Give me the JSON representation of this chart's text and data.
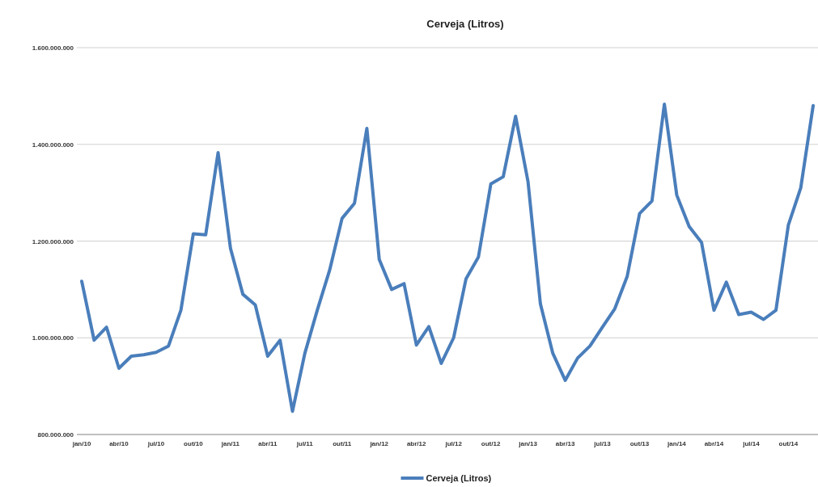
{
  "chart_data": {
    "type": "line",
    "title": "Cerveja (Litros)",
    "categories": [
      "jan/10",
      null,
      null,
      "abr/10",
      null,
      null,
      "jul/10",
      null,
      null,
      "out/10",
      null,
      null,
      "jan/11",
      null,
      null,
      "abr/11",
      null,
      null,
      "jul/11",
      null,
      null,
      "out/11",
      null,
      null,
      "jan/12",
      null,
      null,
      "abr/12",
      null,
      null,
      "jul/12",
      null,
      null,
      "out/12",
      null,
      null,
      "jan/13",
      null,
      null,
      "abr/13",
      null,
      null,
      "jul/13",
      null,
      null,
      "out/13",
      null,
      null,
      "jan/14",
      null,
      null,
      "abr/14",
      null,
      null,
      "jul/14",
      null,
      null,
      "out/14",
      null,
      null
    ],
    "series": [
      {
        "name": "Cerveja (Litros)",
        "color": "#4a7ebb",
        "values": [
          1117000000,
          995000000,
          1022000000,
          937000000,
          962000000,
          965000000,
          970000000,
          983000000,
          1057000000,
          1215000000,
          1213000000,
          1383000000,
          1185000000,
          1090000000,
          1068000000,
          962000000,
          995000000,
          848000000,
          968000000,
          1057000000,
          1140000000,
          1247000000,
          1278000000,
          1433000000,
          1162000000,
          1100000000,
          1112000000,
          985000000,
          1023000000,
          947000000,
          1000000000,
          1122000000,
          1167000000,
          1318000000,
          1333000000,
          1458000000,
          1323000000,
          1070000000,
          968000000,
          912000000,
          958000000,
          983000000,
          1022000000,
          1060000000,
          1127000000,
          1257000000,
          1283000000,
          1483000000,
          1295000000,
          1230000000,
          1197000000,
          1057000000,
          1115000000,
          1048000000,
          1053000000,
          1038000000,
          1057000000,
          1233000000,
          1310000000,
          1480000000
        ]
      }
    ],
    "ylim": [
      800000000,
      1600000000
    ],
    "yticks": [
      {
        "value": 800000000,
        "label": "800.000.000"
      },
      {
        "value": 1000000000,
        "label": "1.000.000.000"
      },
      {
        "value": 1200000000,
        "label": "1.200.000.000"
      },
      {
        "value": 1400000000,
        "label": "1.400.000.000"
      },
      {
        "value": 1600000000,
        "label": "1.600.000.000"
      }
    ],
    "grid": "y",
    "legend": "bottom",
    "marker": "none",
    "line_style": "solid"
  }
}
